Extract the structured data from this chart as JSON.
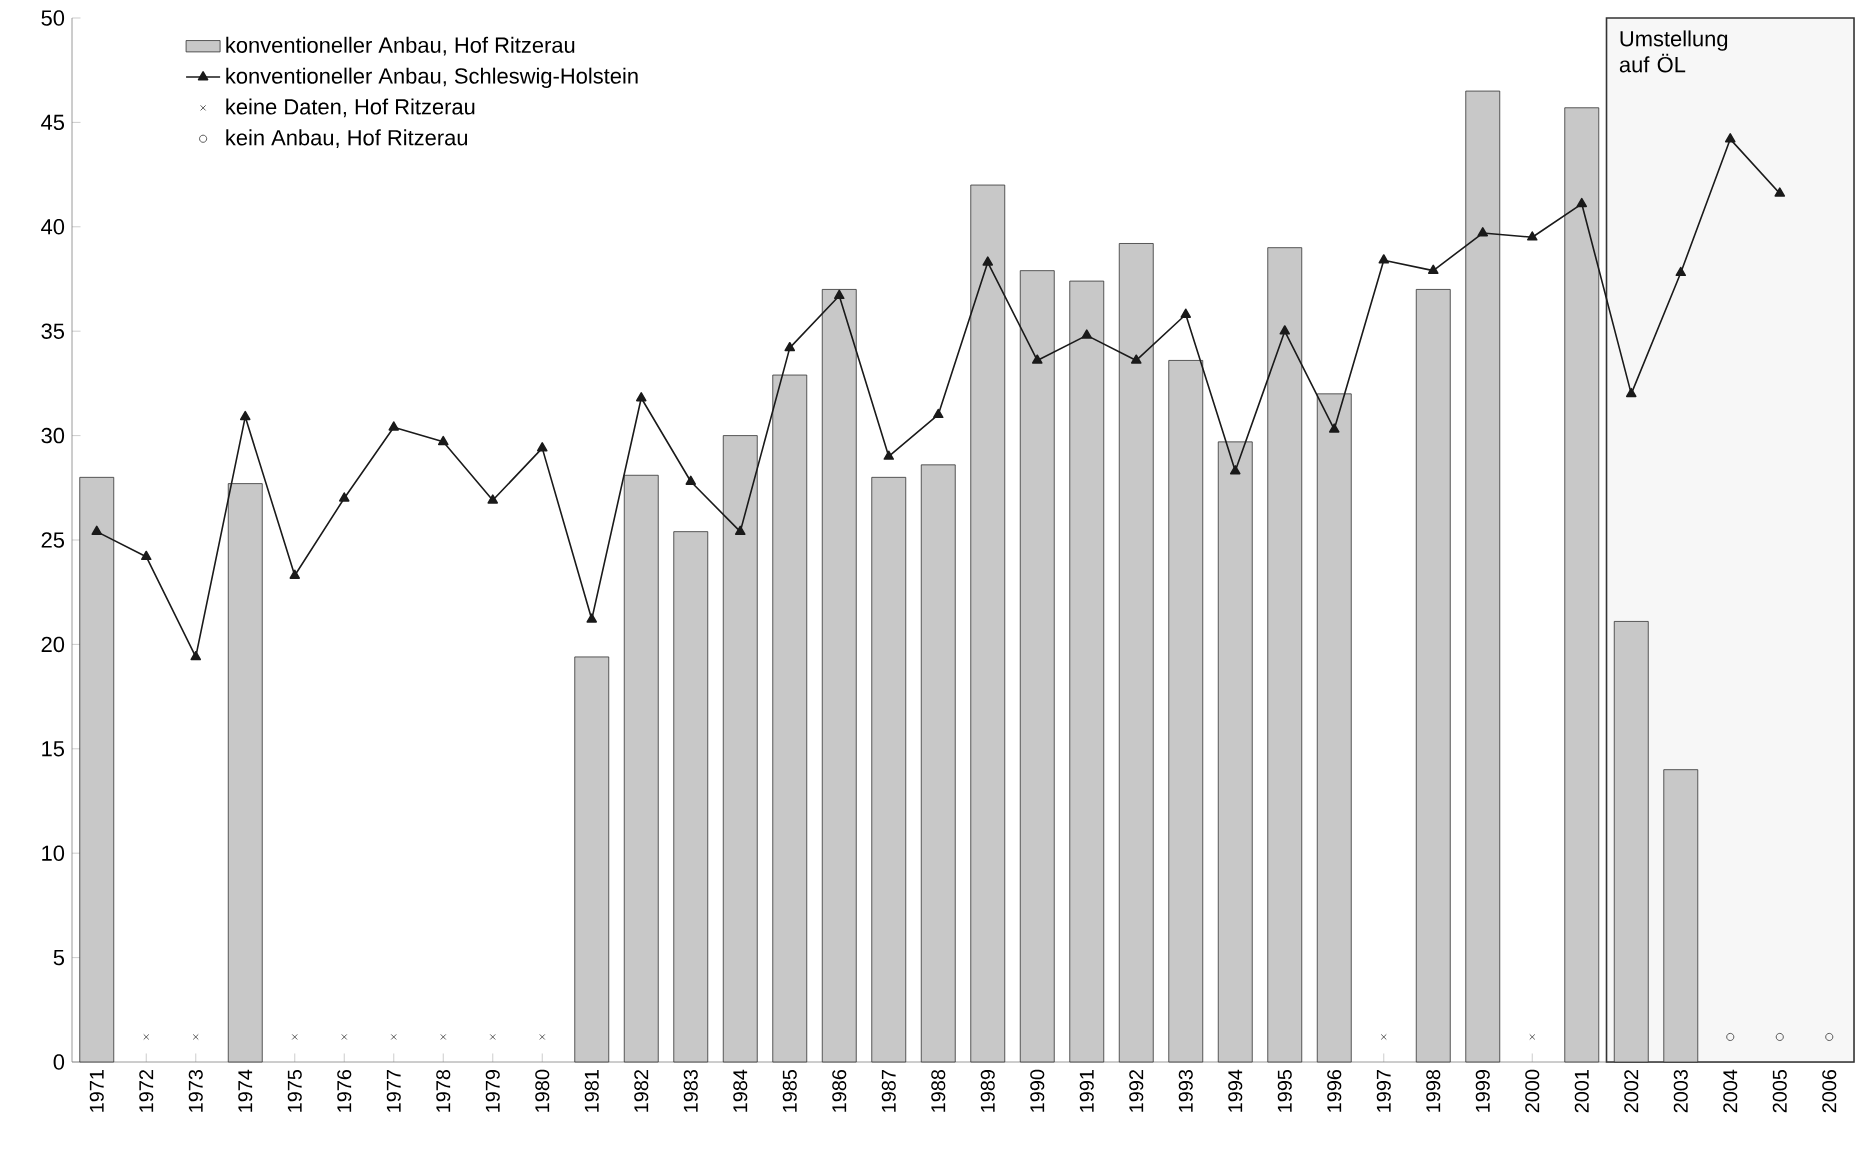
{
  "chart_data": {
    "type": "bar",
    "categories": [
      "1971",
      "1972",
      "1973",
      "1974",
      "1975",
      "1976",
      "1977",
      "1978",
      "1979",
      "1980",
      "1981",
      "1982",
      "1983",
      "1984",
      "1985",
      "1986",
      "1987",
      "1988",
      "1989",
      "1990",
      "1991",
      "1992",
      "1993",
      "1994",
      "1995",
      "1996",
      "1997",
      "1998",
      "1999",
      "2000",
      "2001",
      "2002",
      "2003",
      "2004",
      "2005",
      "2006"
    ],
    "series": [
      {
        "name": "konventioneller Anbau, Hof Ritzerau",
        "color": "#c8c8c8",
        "values": [
          28,
          null,
          null,
          27.7,
          null,
          null,
          null,
          null,
          null,
          null,
          19.4,
          28.1,
          25.4,
          30,
          32.9,
          37,
          28,
          28.6,
          42,
          37.9,
          37.4,
          39.2,
          33.6,
          29.7,
          39,
          32,
          null,
          37,
          46.5,
          null,
          45.7,
          21.1,
          14,
          null,
          null,
          null
        ]
      },
      {
        "name": "konventioneller Anbau, Schleswig-Holstein",
        "type": "line",
        "color": "#1a1a1a",
        "marker": "triangle",
        "values": [
          25.4,
          24.2,
          19.4,
          30.9,
          23.3,
          27,
          30.4,
          29.7,
          26.9,
          29.4,
          21.2,
          31.8,
          27.8,
          25.4,
          34.2,
          36.7,
          29,
          31,
          38.3,
          33.6,
          34.8,
          33.6,
          35.8,
          28.3,
          35,
          30.3,
          38.4,
          37.9,
          39.7,
          39.5,
          41.1,
          32,
          37.8,
          44.2,
          41.6,
          null
        ]
      },
      {
        "name": "keine Daten, Hof Ritzerau",
        "type": "scatter",
        "color": "#333333",
        "marker": "cross",
        "values": [
          null,
          1.2,
          1.2,
          null,
          1.2,
          1.2,
          1.2,
          1.2,
          1.2,
          1.2,
          null,
          null,
          null,
          null,
          null,
          null,
          null,
          null,
          null,
          null,
          null,
          null,
          null,
          null,
          null,
          null,
          1.2,
          null,
          null,
          1.2,
          null,
          null,
          null,
          null,
          null,
          null
        ]
      },
      {
        "name": "kein Anbau, Hof Ritzerau",
        "type": "scatter",
        "color": "#333333",
        "marker": "circle",
        "values": [
          null,
          null,
          null,
          null,
          null,
          null,
          null,
          null,
          null,
          null,
          null,
          null,
          null,
          null,
          null,
          null,
          null,
          null,
          null,
          null,
          null,
          null,
          null,
          null,
          null,
          null,
          null,
          null,
          null,
          null,
          null,
          null,
          null,
          1.2,
          1.2,
          1.2
        ]
      }
    ],
    "bands": [
      {
        "axis": "x",
        "from": "2002",
        "to": "2006",
        "label": "Umstellung auf ÖL",
        "color": "#f7f7f7"
      }
    ],
    "ylim": [
      0,
      50
    ],
    "yticks": [
      0,
      5,
      10,
      15,
      20,
      25,
      30,
      35,
      40,
      45,
      50
    ],
    "legend": "top left"
  }
}
